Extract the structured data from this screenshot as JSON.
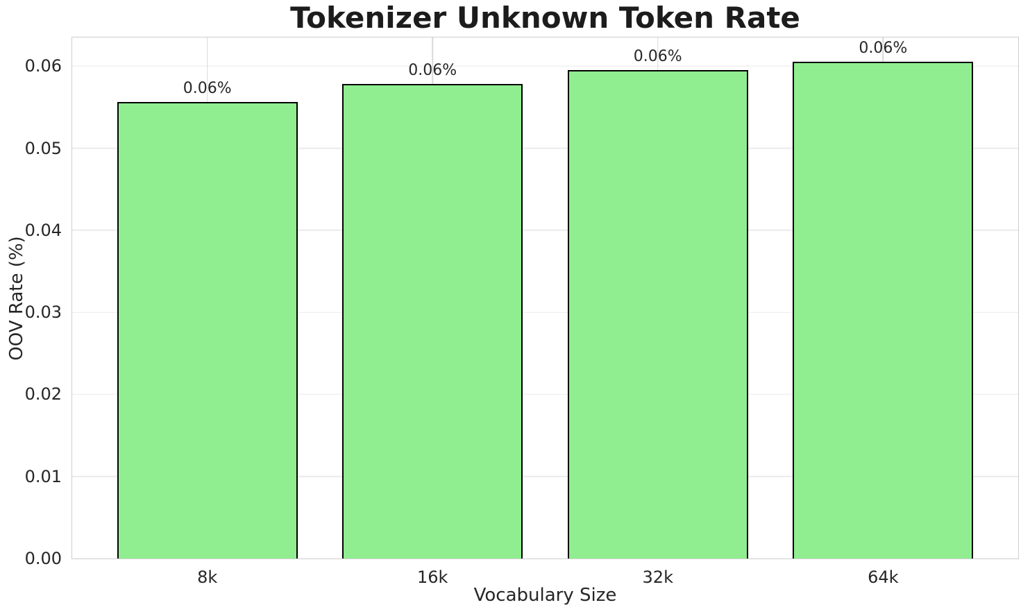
{
  "chart_data": {
    "type": "bar",
    "title": "Tokenizer Unknown Token Rate",
    "xlabel": "Vocabulary Size",
    "ylabel": "OOV Rate (%)",
    "categories": [
      "8k",
      "16k",
      "32k",
      "64k"
    ],
    "values": [
      0.0556,
      0.0578,
      0.0595,
      0.0605
    ],
    "bar_labels": [
      "0.06%",
      "0.06%",
      "0.06%",
      "0.06%"
    ],
    "yticks": [
      0,
      0.01,
      0.02,
      0.03,
      0.04,
      0.05,
      0.06
    ],
    "ytick_labels": [
      "0.00",
      "0.01",
      "0.02",
      "0.03",
      "0.04",
      "0.05",
      "0.06"
    ],
    "ylim": [
      0,
      0.0635
    ],
    "xlim": [
      -0.6,
      3.6
    ],
    "bar_width": 0.8,
    "grid": true,
    "legend": "none",
    "colors": {
      "bar_fill": "#90EE90",
      "bar_edge": "#000000",
      "grid_horizontal": "#EAEAEA",
      "grid_vertical": "#D9D9D9",
      "spine": "#CDCDCD",
      "text": "#262626",
      "title_text": "#1C1C1C"
    }
  }
}
